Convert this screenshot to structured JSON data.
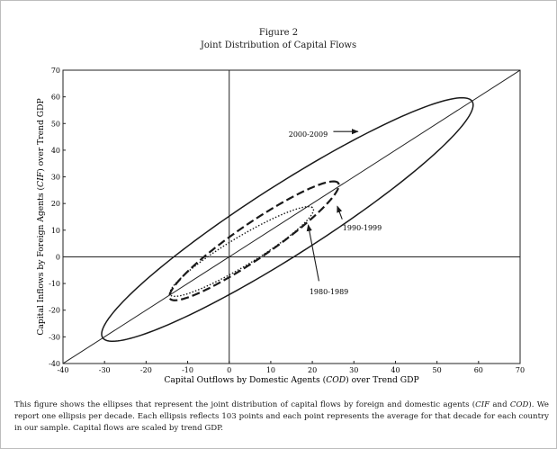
{
  "figure": {
    "number_label": "Figure 2",
    "title": "Joint Distribution of Capital Flows"
  },
  "caption": {
    "part1": "This figure shows the ellipses that represent the joint distribution of capital flows by foreign and domestic agents (",
    "cif": "CIF",
    "and": " and ",
    "cod": "COD",
    "part2": "). We report one ellipsis per decade. Each ellipsis reflects 103 points and each point represents the average for that decade for each country in our sample. Capital flows are scaled by trend GDP."
  },
  "chart_data": {
    "type": "line",
    "xlabel_parts": [
      "Capital Outflows by Domestic Agents (",
      "COD",
      ") over Trend GDP"
    ],
    "ylabel_parts": [
      "Capital Inflows by Foreign Agents (",
      "CIF",
      ") over Trend GDP"
    ],
    "xlim": [
      -40,
      70
    ],
    "ylim": [
      -40,
      70
    ],
    "xticks": [
      -40,
      -30,
      -20,
      -10,
      0,
      10,
      20,
      30,
      40,
      50,
      60,
      70
    ],
    "yticks": [
      -40,
      -30,
      -20,
      -10,
      0,
      10,
      20,
      30,
      40,
      50,
      60,
      70
    ],
    "reference_lines": [
      "x=0",
      "y=0",
      "y=x"
    ],
    "series": [
      {
        "name": "2000-2009",
        "style": "solid",
        "ellipse": {
          "center": [
            14,
            14
          ],
          "axis_end_a": [
            58,
            59
          ],
          "axis_end_b": [
            -30,
            -31
          ],
          "minor_halfwidth": 11
        }
      },
      {
        "name": "1990-1999",
        "style": "dashed",
        "ellipse": {
          "center": [
            6,
            6
          ],
          "axis_end_a": [
            26,
            28
          ],
          "axis_end_b": [
            -14,
            -16
          ],
          "minor_halfwidth": 5.4
        }
      },
      {
        "name": "1980-1989",
        "style": "dotted",
        "ellipse": {
          "center": [
            3,
            2
          ],
          "axis_end_a": [
            20,
            18.5
          ],
          "axis_end_b": [
            -14,
            -14.5
          ],
          "minor_halfwidth": 4.5
        }
      }
    ],
    "annotations": [
      {
        "text": "2000-2009",
        "series": "2000-2009",
        "at": [
          19,
          46
        ],
        "arrow_to": [
          31,
          47
        ]
      },
      {
        "text": "1990-1999",
        "series": "1990-1999",
        "at": [
          32,
          11
        ],
        "arrow_to": [
          26,
          19
        ]
      },
      {
        "text": "1980-1989",
        "series": "1980-1989",
        "at": [
          24,
          -13
        ],
        "arrow_to": [
          19,
          12
        ]
      }
    ]
  }
}
